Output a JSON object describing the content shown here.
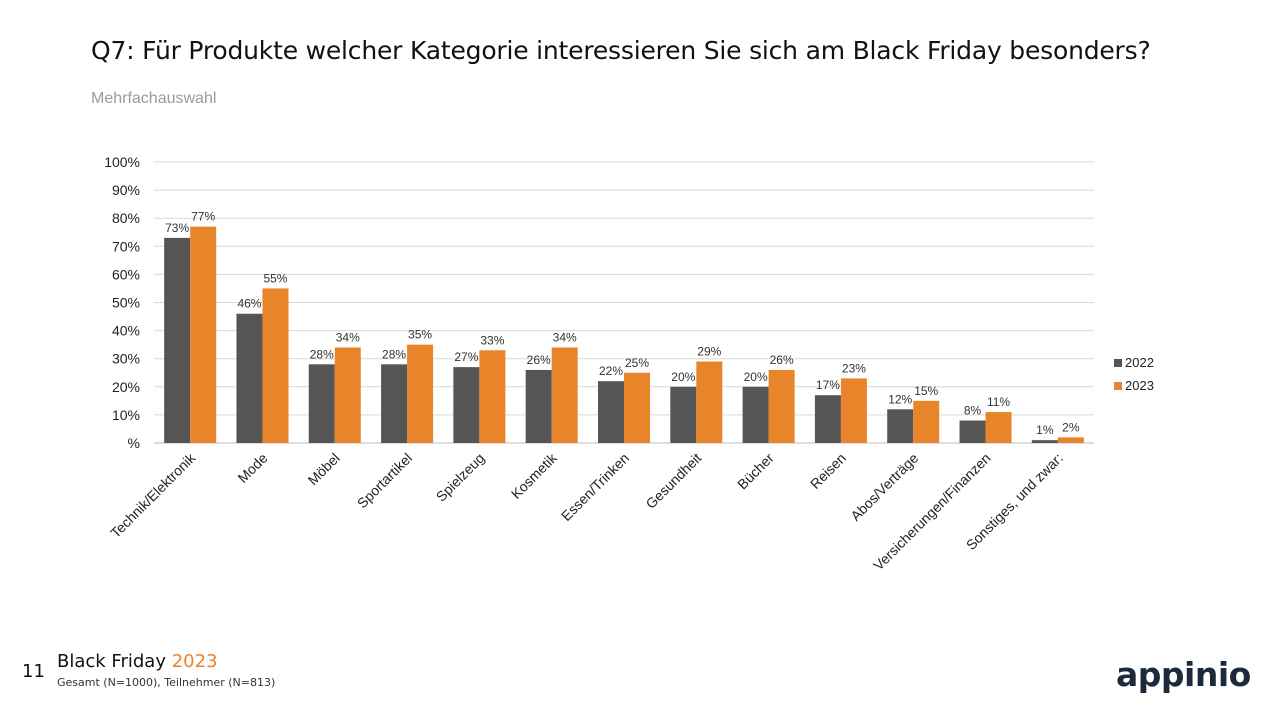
{
  "header": {
    "title": "Q7: Für Produkte welcher Kategorie interessieren Sie sich am Black Friday besonders?",
    "subtitle": "Mehrfachauswahl"
  },
  "chart_data": {
    "type": "bar",
    "categories": [
      "Technik/Elektronik",
      "Mode",
      "Möbel",
      "Sportartikel",
      "Spielzeug",
      "Kosmetik",
      "Essen/Trinken",
      "Gesundheit",
      "Bücher",
      "Reisen",
      "Abos/Verträge",
      "Versicherungen/Finanzen",
      "Sonstiges, und zwar:"
    ],
    "series": [
      {
        "name": "2022",
        "color": "#555555",
        "values": [
          73,
          46,
          28,
          28,
          27,
          26,
          22,
          20,
          20,
          17,
          12,
          8,
          1
        ],
        "labels": [
          "73%",
          "46%",
          "28%",
          "28%",
          "27%",
          "26%",
          "22%",
          "20%",
          "20%",
          "17%",
          "12%",
          "8%",
          "1%"
        ]
      },
      {
        "name": "2023",
        "color": "#e8852a",
        "values": [
          77,
          55,
          34,
          35,
          33,
          34,
          25,
          29,
          26,
          23,
          15,
          11,
          2
        ],
        "labels": [
          "77%",
          "55%",
          "34%",
          "35%",
          "33%",
          "34%",
          "25%",
          "29%",
          "26%",
          "23%",
          "15%",
          "11%",
          "2%"
        ]
      }
    ],
    "ylim": [
      0,
      100
    ],
    "yticks": [
      0,
      10,
      20,
      30,
      40,
      50,
      60,
      70,
      80,
      90,
      100
    ],
    "ytick_labels": [
      "%",
      "10%",
      "20%",
      "30%",
      "40%",
      "50%",
      "60%",
      "70%",
      "80%",
      "90%",
      "100%"
    ],
    "grid": true,
    "legend_position": "right"
  },
  "footer": {
    "page_number": "11",
    "title": "Black Friday",
    "year": "2023",
    "note": "Gesamt (N=1000), Teilnehmer (N=813)",
    "logo": "appinio"
  }
}
